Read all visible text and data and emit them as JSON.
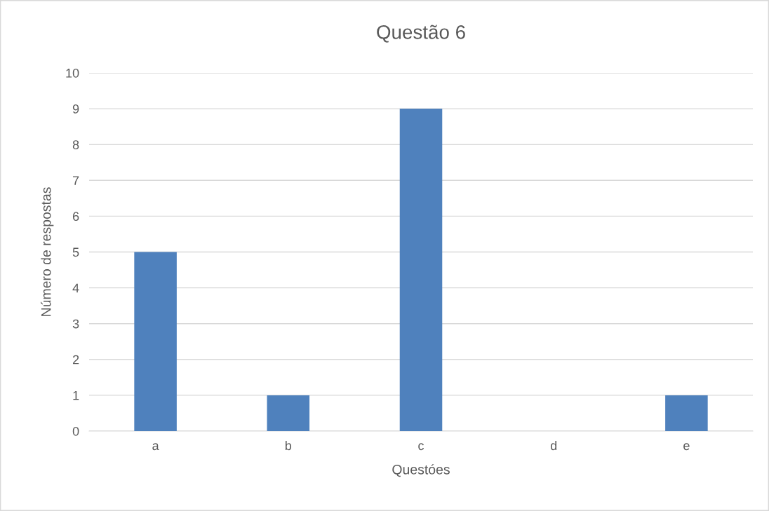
{
  "chart_data": {
    "type": "bar",
    "title": "Questão 6",
    "xlabel": "Questóes",
    "ylabel": "Número de respostas",
    "categories": [
      "a",
      "b",
      "c",
      "d",
      "e"
    ],
    "values": [
      5,
      1,
      9,
      0,
      1
    ],
    "color": "#4f81bd",
    "ylim": [
      0,
      10
    ],
    "yticks": [
      0,
      1,
      2,
      3,
      4,
      5,
      6,
      7,
      8,
      9,
      10
    ],
    "grid": "y",
    "legend": false
  }
}
